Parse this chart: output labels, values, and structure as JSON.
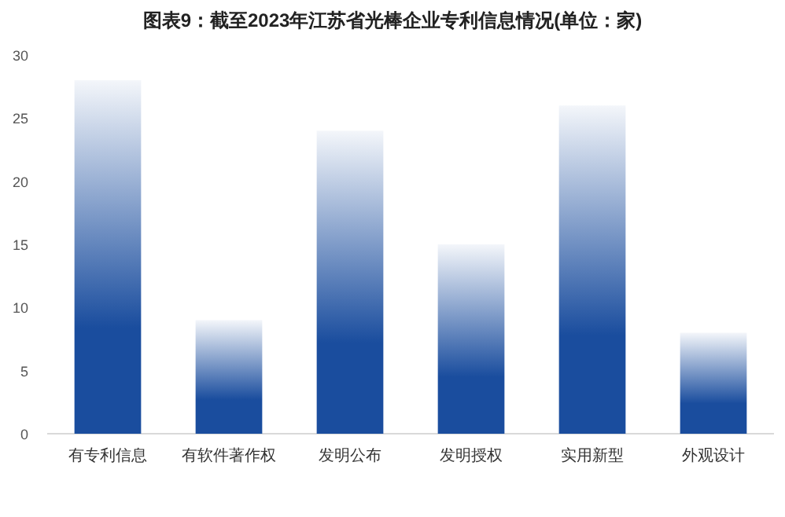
{
  "chart_data": {
    "type": "bar",
    "title": "图表9：截至2023年江苏省光棒企业专利信息情况(单位：家)",
    "categories": [
      "有专利信息",
      "有软件著作权",
      "发明公布",
      "发明授权",
      "实用新型",
      "外观设计"
    ],
    "values": [
      28,
      9,
      24,
      15,
      26,
      8
    ],
    "color": "#1a4d9e",
    "ylim": [
      0,
      30
    ],
    "yticks": [
      0,
      5,
      10,
      15,
      20,
      25,
      30
    ],
    "grid": false
  }
}
